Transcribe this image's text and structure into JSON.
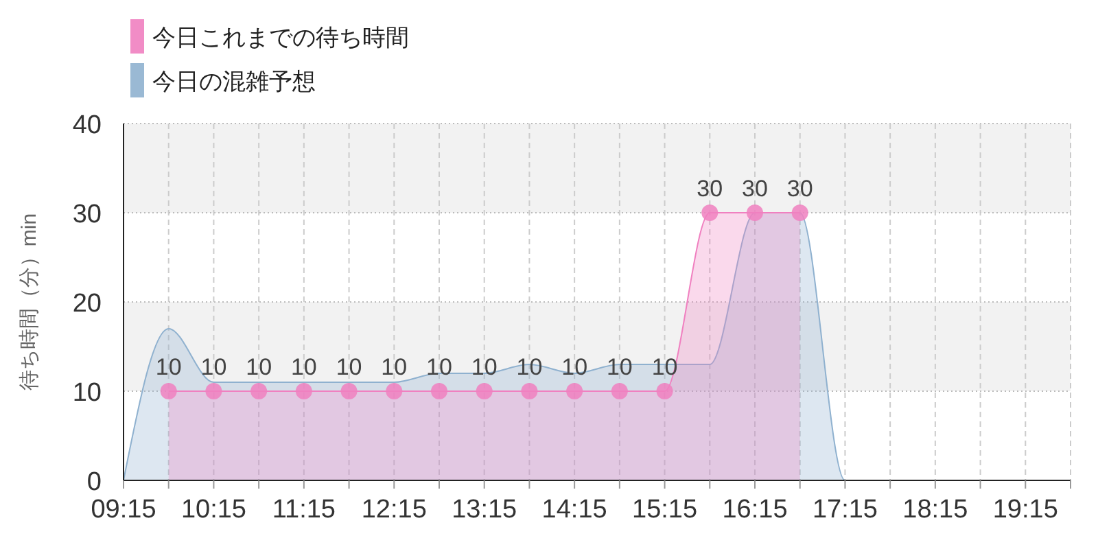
{
  "chart_data": {
    "type": "area",
    "ylabel": "待ち時間（分）min",
    "xlim": [
      9.25,
      19.75
    ],
    "xticks": [
      {
        "value": 9.25,
        "label": "09:15"
      },
      {
        "value": 9.75,
        "label": null
      },
      {
        "value": 10.25,
        "label": "10:15"
      },
      {
        "value": 10.75,
        "label": null
      },
      {
        "value": 11.25,
        "label": "11:15"
      },
      {
        "value": 11.75,
        "label": null
      },
      {
        "value": 12.25,
        "label": "12:15"
      },
      {
        "value": 12.75,
        "label": null
      },
      {
        "value": 13.25,
        "label": "13:15"
      },
      {
        "value": 13.75,
        "label": null
      },
      {
        "value": 14.25,
        "label": "14:15"
      },
      {
        "value": 14.75,
        "label": null
      },
      {
        "value": 15.25,
        "label": "15:15"
      },
      {
        "value": 15.75,
        "label": null
      },
      {
        "value": 16.25,
        "label": "16:15"
      },
      {
        "value": 16.75,
        "label": null
      },
      {
        "value": 17.25,
        "label": "17:15"
      },
      {
        "value": 17.75,
        "label": null
      },
      {
        "value": 18.25,
        "label": "18:15"
      },
      {
        "value": 18.75,
        "label": null
      },
      {
        "value": 19.25,
        "label": "19:15"
      },
      {
        "value": 19.75,
        "label": null
      }
    ],
    "ylim": [
      0,
      40
    ],
    "yticks": [
      0,
      10,
      20,
      30,
      40
    ],
    "grid": true,
    "legend": "top left",
    "series": [
      {
        "name": "今日の混雑予想",
        "color": "#8fb1cf",
        "marker": "none",
        "x": [
          9.25,
          9.75,
          10.25,
          10.75,
          11.25,
          11.75,
          12.25,
          12.75,
          13.25,
          13.75,
          14.25,
          14.75,
          15.25,
          15.75,
          16.25,
          16.75,
          17.25,
          17.75,
          18.25,
          18.75,
          19.25,
          19.75
        ],
        "values": [
          0,
          17,
          11,
          11,
          11,
          11,
          11,
          12,
          12,
          13,
          12,
          13,
          13,
          13,
          30,
          30,
          0,
          0,
          0,
          0,
          0,
          0
        ]
      },
      {
        "name": "今日これまでの待ち時間",
        "color": "#f080c0",
        "marker": "circle",
        "x": [
          9.75,
          10.25,
          10.75,
          11.25,
          11.75,
          12.25,
          12.75,
          13.25,
          13.75,
          14.25,
          14.75,
          15.25,
          15.75,
          16.25,
          16.75
        ],
        "values": [
          10,
          10,
          10,
          10,
          10,
          10,
          10,
          10,
          10,
          10,
          10,
          10,
          30,
          30,
          30
        ],
        "value_labels": [
          "10",
          "10",
          "10",
          "10",
          "10",
          "10",
          "10",
          "10",
          "10",
          "10",
          "10",
          "10",
          "30",
          "30",
          "30"
        ]
      }
    ]
  }
}
